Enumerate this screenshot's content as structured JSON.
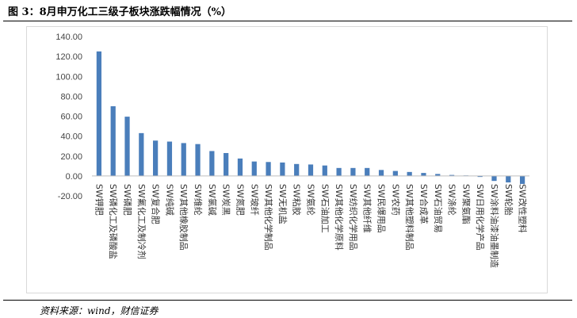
{
  "figure": {
    "title": "图 3：8月申万化工三级子板块涨跌幅情况（%）",
    "source": "资料来源：wind，财信证券"
  },
  "chart_data": {
    "type": "bar",
    "title": "",
    "xlabel": "",
    "ylabel": "",
    "ylim": [
      -20,
      140
    ],
    "yticks": [
      "140.00",
      "120.00",
      "100.00",
      "80.00",
      "60.00",
      "40.00",
      "20.00",
      "0.00",
      "-20.00"
    ],
    "grid": false,
    "bar_color": "#4a7ebb",
    "categories": [
      "SW钾肥",
      "SW磷化工及磷酸盐",
      "SW磷肥",
      "SW氟化工及制冷剂",
      "SW复合肥",
      "SW纯碱",
      "SW其他橡胶制品",
      "SW维纶",
      "SW氯碱",
      "SW炭黑",
      "SW氮肥",
      "SW玻纤",
      "SW其他化学制品",
      "SW无机盐",
      "SW粘胶",
      "SW氨纶",
      "SW石油加工",
      "SW其他化学原料",
      "SW纺织化学用品",
      "SW其他纤维",
      "SW民爆用品",
      "SW农药",
      "SW其他塑料制品",
      "SW合成革",
      "SW石油贸易",
      "SW涤纶",
      "SW聚氨酯",
      "SW日用化学产品",
      "SW涂料油漆油墨制造",
      "SW轮胎",
      "SW改性塑料"
    ],
    "values": [
      125,
      70,
      59.5,
      43,
      35.5,
      34.5,
      33,
      32,
      25,
      23,
      17.5,
      14.5,
      14,
      13.5,
      12,
      11.5,
      10.5,
      8,
      8,
      8,
      6,
      5,
      4,
      3,
      2,
      1,
      0.5,
      -1,
      -5,
      -6.5,
      -8
    ]
  }
}
